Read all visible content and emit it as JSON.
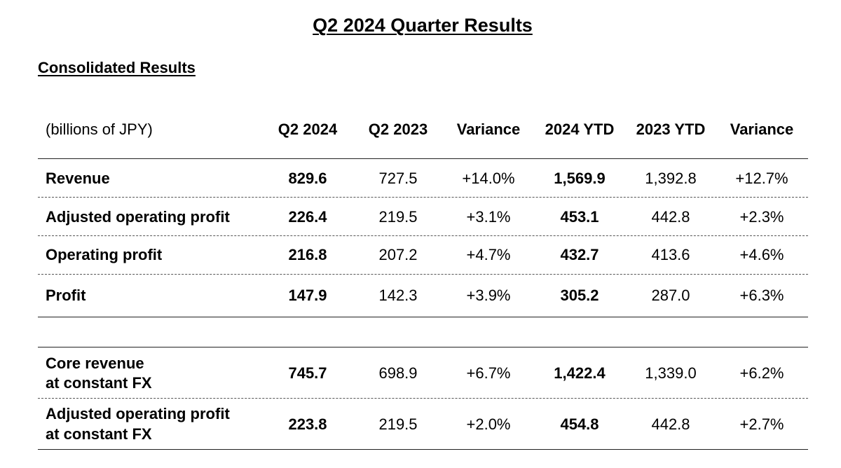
{
  "title": "Q2 2024 Quarter Results",
  "section_title": "Consolidated Results",
  "table": {
    "unit_label": "(billions of JPY)",
    "columns": [
      "Q2 2024",
      "Q2 2023",
      "Variance",
      "2024 YTD",
      "2023 YTD",
      "Variance"
    ],
    "rows": [
      {
        "label": "Revenue",
        "values": [
          "829.6",
          "727.5",
          "+14.0%",
          "1,569.9",
          "1,392.8",
          "+12.7%"
        ]
      },
      {
        "label": "Adjusted operating profit",
        "values": [
          "226.4",
          "219.5",
          "+3.1%",
          "453.1",
          "442.8",
          "+2.3%"
        ]
      },
      {
        "label": "Operating profit",
        "values": [
          "216.8",
          "207.2",
          "+4.7%",
          "432.7",
          "413.6",
          "+4.6%"
        ]
      },
      {
        "label": "Profit",
        "values": [
          "147.9",
          "142.3",
          "+3.9%",
          "305.2",
          "287.0",
          "+6.3%"
        ]
      }
    ],
    "constant_fx_rows": [
      {
        "label_line1": "Core revenue",
        "label_line2": "at constant FX",
        "values": [
          "745.7",
          "698.9",
          "+6.7%",
          "1,422.4",
          "1,339.0",
          "+6.2%"
        ]
      },
      {
        "label_line1": "Adjusted operating profit",
        "label_line2": "at constant FX",
        "values": [
          "223.8",
          "219.5",
          "+2.0%",
          "454.8",
          "442.8",
          "+2.7%"
        ]
      }
    ]
  }
}
